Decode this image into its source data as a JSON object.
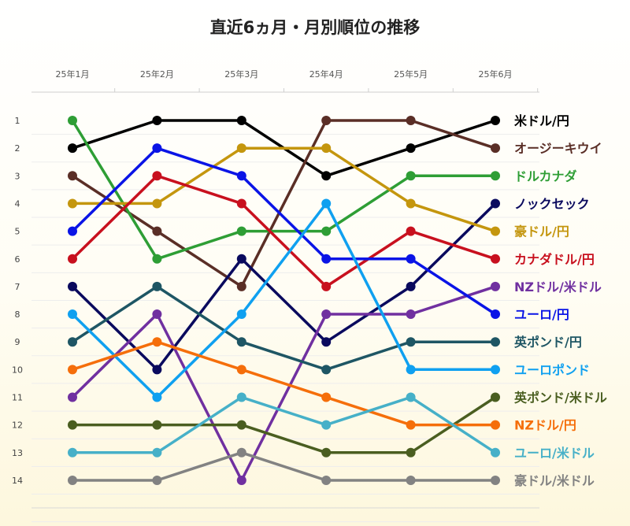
{
  "chart_data": {
    "type": "line",
    "title": "直近6ヵ月・月別順位の推移",
    "categories": [
      "25年1月",
      "25年2月",
      "25年3月",
      "25年4月",
      "25年5月",
      "25年6月"
    ],
    "ranks": [
      "1",
      "2",
      "3",
      "4",
      "5",
      "6",
      "7",
      "8",
      "9",
      "10",
      "11",
      "12",
      "13",
      "14"
    ],
    "y_axis": "rank, inverted (1 at top)",
    "ylim": [
      1,
      14
    ],
    "legend": "right",
    "series": [
      {
        "name": "米ドル/円",
        "color": "#000000",
        "values": [
          2,
          1,
          1,
          3,
          2,
          1
        ]
      },
      {
        "name": "オージーキウイ",
        "color": "#5a2e26",
        "values": [
          3,
          5,
          7,
          1,
          1,
          2
        ]
      },
      {
        "name": "ドルカナダ",
        "color": "#2e9e35",
        "values": [
          1,
          6,
          5,
          5,
          3,
          3
        ]
      },
      {
        "name": "ノックセック",
        "color": "#0a0a5e",
        "values": [
          7,
          10,
          6,
          9,
          7,
          4
        ]
      },
      {
        "name": "豪ドル/円",
        "color": "#c4960e",
        "values": [
          4,
          4,
          2,
          2,
          4,
          5
        ]
      },
      {
        "name": "カナダドル/円",
        "color": "#c8101e",
        "values": [
          6,
          3,
          4,
          7,
          5,
          6
        ]
      },
      {
        "name": "NZドル/米ドル",
        "color": "#7030a0",
        "values": [
          11,
          8,
          14,
          8,
          8,
          7
        ]
      },
      {
        "name": "ユーロ/円",
        "color": "#0a14e6",
        "values": [
          5,
          2,
          3,
          6,
          6,
          8
        ]
      },
      {
        "name": "英ポンド/円",
        "color": "#1e5664",
        "values": [
          9,
          7,
          9,
          10,
          9,
          9
        ]
      },
      {
        "name": "ユーロポンド",
        "color": "#0fa0f0",
        "values": [
          8,
          11,
          8,
          4,
          10,
          10
        ]
      },
      {
        "name": "英ポンド/米ドル",
        "color": "#4a5e20",
        "values": [
          12,
          12,
          12,
          13,
          13,
          11
        ]
      },
      {
        "name": "NZドル/円",
        "color": "#f56e0a",
        "values": [
          10,
          9,
          10,
          11,
          12,
          12
        ]
      },
      {
        "name": "ユーロ/米ドル",
        "color": "#46b0c8",
        "values": [
          13,
          13,
          11,
          12,
          11,
          13
        ]
      },
      {
        "name": "豪ドル/米ドル",
        "color": "#828282",
        "values": [
          14,
          14,
          13,
          14,
          14,
          14
        ]
      }
    ]
  }
}
